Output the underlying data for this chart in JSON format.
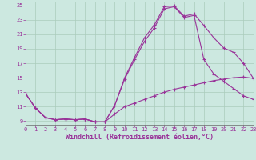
{
  "xlabel": "Windchill (Refroidissement éolien,°C)",
  "bg_color": "#cce8e0",
  "grid_color": "#aaccbb",
  "line_color": "#993399",
  "xlim": [
    0,
    23
  ],
  "ylim": [
    8.5,
    25.5
  ],
  "xticks": [
    0,
    1,
    2,
    3,
    4,
    5,
    6,
    7,
    8,
    9,
    10,
    11,
    12,
    13,
    14,
    15,
    16,
    17,
    18,
    19,
    20,
    21,
    22,
    23
  ],
  "yticks": [
    9,
    11,
    13,
    15,
    17,
    19,
    21,
    23,
    25
  ],
  "line1_x": [
    0,
    1,
    2,
    3,
    4,
    5,
    6,
    7,
    8,
    9,
    10,
    11,
    12,
    13,
    14,
    15,
    16,
    17,
    18,
    19,
    20,
    21,
    22,
    23
  ],
  "line1_y": [
    12.8,
    10.8,
    9.5,
    9.2,
    9.3,
    9.2,
    9.3,
    8.9,
    8.9,
    11.2,
    15.0,
    17.8,
    20.5,
    22.3,
    24.8,
    24.9,
    23.5,
    23.8,
    22.2,
    20.5,
    19.1,
    18.5,
    17.0,
    14.9
  ],
  "line2_x": [
    0,
    1,
    2,
    3,
    4,
    5,
    6,
    7,
    8,
    9,
    10,
    11,
    12,
    13,
    14,
    15,
    16,
    17,
    18,
    19,
    20,
    21,
    22,
    23
  ],
  "line2_y": [
    12.8,
    10.8,
    9.5,
    9.2,
    9.3,
    9.2,
    9.3,
    8.9,
    8.9,
    11.2,
    14.8,
    17.5,
    20.0,
    21.9,
    24.5,
    24.8,
    23.3,
    23.6,
    17.5,
    15.5,
    14.5,
    13.5,
    12.5,
    12.0
  ],
  "line3_x": [
    0,
    1,
    2,
    3,
    4,
    5,
    6,
    7,
    8,
    9,
    10,
    11,
    12,
    13,
    14,
    15,
    16,
    17,
    18,
    19,
    20,
    21,
    22,
    23
  ],
  "line3_y": [
    12.8,
    10.8,
    9.5,
    9.2,
    9.3,
    9.2,
    9.3,
    8.9,
    8.9,
    10.0,
    11.0,
    11.5,
    12.0,
    12.5,
    13.0,
    13.4,
    13.7,
    14.0,
    14.3,
    14.6,
    14.8,
    15.0,
    15.1,
    14.9
  ],
  "tick_fontsize": 5.0,
  "xlabel_fontsize": 6.0,
  "tick_color": "#993399",
  "spine_color": "#666666"
}
